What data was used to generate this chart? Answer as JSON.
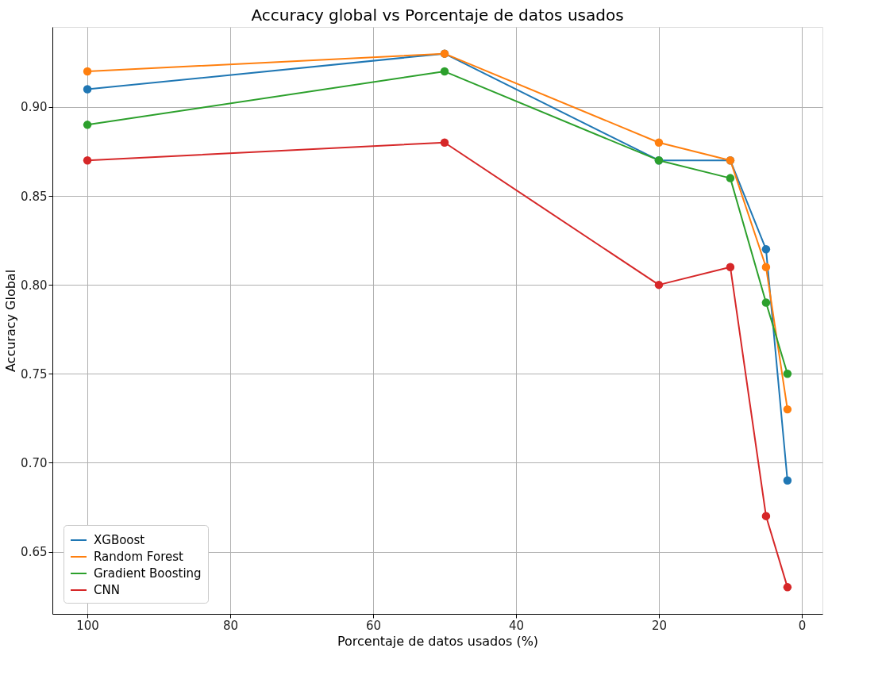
{
  "chart_data": {
    "type": "line",
    "title": "Accuracy global vs Porcentaje de datos usados",
    "xlabel": "Porcentaje de datos usados (%)",
    "ylabel": "Accuracy Global",
    "x": [
      100,
      50,
      20,
      10,
      5,
      2
    ],
    "series": [
      {
        "name": "XGBoost",
        "color": "#1f77b4",
        "values": [
          0.91,
          0.93,
          0.87,
          0.87,
          0.82,
          0.69
        ]
      },
      {
        "name": "Random Forest",
        "color": "#ff7f0e",
        "values": [
          0.92,
          0.93,
          0.88,
          0.87,
          0.81,
          0.73
        ]
      },
      {
        "name": "Gradient Boosting",
        "color": "#2ca02c",
        "values": [
          0.89,
          0.92,
          0.87,
          0.86,
          0.79,
          0.75
        ]
      },
      {
        "name": "CNN",
        "color": "#d62728",
        "values": [
          0.87,
          0.88,
          0.8,
          0.81,
          0.67,
          0.63
        ]
      }
    ],
    "xlim": [
      104.9,
      -2.9
    ],
    "xticks": [
      100,
      80,
      60,
      40,
      20,
      0
    ],
    "ylim": [
      0.615,
      0.945
    ],
    "yticks": [
      {
        "value": 0.65,
        "label": "0.65"
      },
      {
        "value": 0.7,
        "label": "0.70"
      },
      {
        "value": 0.75,
        "label": "0.75"
      },
      {
        "value": 0.8,
        "label": "0.80"
      },
      {
        "value": 0.85,
        "label": "0.85"
      },
      {
        "value": 0.9,
        "label": "0.90"
      }
    ],
    "grid": true,
    "legend": "bottom left",
    "marker": "circle",
    "line_style": "solid"
  }
}
